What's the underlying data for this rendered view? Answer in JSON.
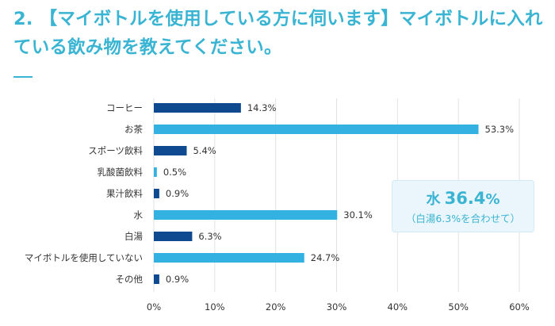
{
  "question": "2. 【マイボトルを使用している方に伺います】マイボトルに入れている飲み物を教えてください。",
  "note": {
    "label": "水",
    "value": "36.4",
    "unit": "%",
    "sub": "（白湯6.3%を合わせて）"
  },
  "colors": {
    "title": "#3ab4d3",
    "dark_bar": "#0f4a90",
    "light_bar": "#33b2e2",
    "grid": "#e2e2e2",
    "text": "#333333"
  },
  "chart_data": {
    "type": "bar",
    "orientation": "horizontal",
    "categories": [
      "コーヒー",
      "お茶",
      "スポーツ飲料",
      "乳酸菌飲料",
      "果汁飲料",
      "水",
      "白湯",
      "マイボトルを使用していない",
      "その他"
    ],
    "values": [
      14.3,
      53.3,
      5.4,
      0.5,
      0.9,
      30.1,
      6.3,
      24.7,
      0.9
    ],
    "value_labels": [
      "14.3%",
      "53.3%",
      "5.4%",
      "0.5%",
      "0.9%",
      "30.1%",
      "6.3%",
      "24.7%",
      "0.9%"
    ],
    "bar_colors": [
      "#0f4a90",
      "#33b2e2",
      "#0f4a90",
      "#33b2e2",
      "#0f4a90",
      "#33b2e2",
      "#0f4a90",
      "#33b2e2",
      "#0f4a90"
    ],
    "xlim": [
      0,
      60
    ],
    "xticks": [
      0,
      10,
      20,
      30,
      40,
      50,
      60
    ],
    "xtick_labels": [
      "0%",
      "10%",
      "20%",
      "30%",
      "40%",
      "50%",
      "60%"
    ],
    "grid": true
  }
}
